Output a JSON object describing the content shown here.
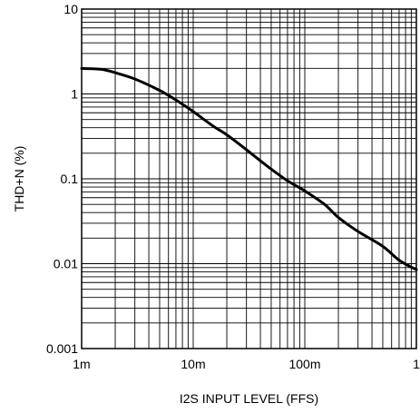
{
  "chart_data": {
    "type": "line",
    "title": "",
    "xlabel": "I2S INPUT LEVEL (FFS)",
    "ylabel": "THD+N (%)",
    "x_scale": "log",
    "y_scale": "log",
    "xlim": [
      0.001,
      1
    ],
    "ylim": [
      0.001,
      10
    ],
    "grid": true,
    "x_ticks": [
      {
        "value": 0.001,
        "label": "1m"
      },
      {
        "value": 0.01,
        "label": "10m"
      },
      {
        "value": 0.1,
        "label": "100m"
      },
      {
        "value": 1,
        "label": "1"
      }
    ],
    "y_ticks": [
      {
        "value": 0.001,
        "label": "0.001"
      },
      {
        "value": 0.01,
        "label": "0.01"
      },
      {
        "value": 0.1,
        "label": "0.1"
      },
      {
        "value": 1,
        "label": "1"
      },
      {
        "value": 10,
        "label": "10"
      }
    ],
    "series": [
      {
        "x": [
          0.001,
          0.0015,
          0.002,
          0.003,
          0.005,
          0.007,
          0.01,
          0.015,
          0.02,
          0.03,
          0.05,
          0.07,
          0.1,
          0.15,
          0.2,
          0.3,
          0.5,
          0.7,
          1
        ],
        "y": [
          2.0,
          1.95,
          1.78,
          1.5,
          1.1,
          0.85,
          0.62,
          0.42,
          0.33,
          0.22,
          0.13,
          0.095,
          0.072,
          0.05,
          0.035,
          0.024,
          0.016,
          0.011,
          0.0085
        ]
      }
    ],
    "line_color": "#000000"
  }
}
